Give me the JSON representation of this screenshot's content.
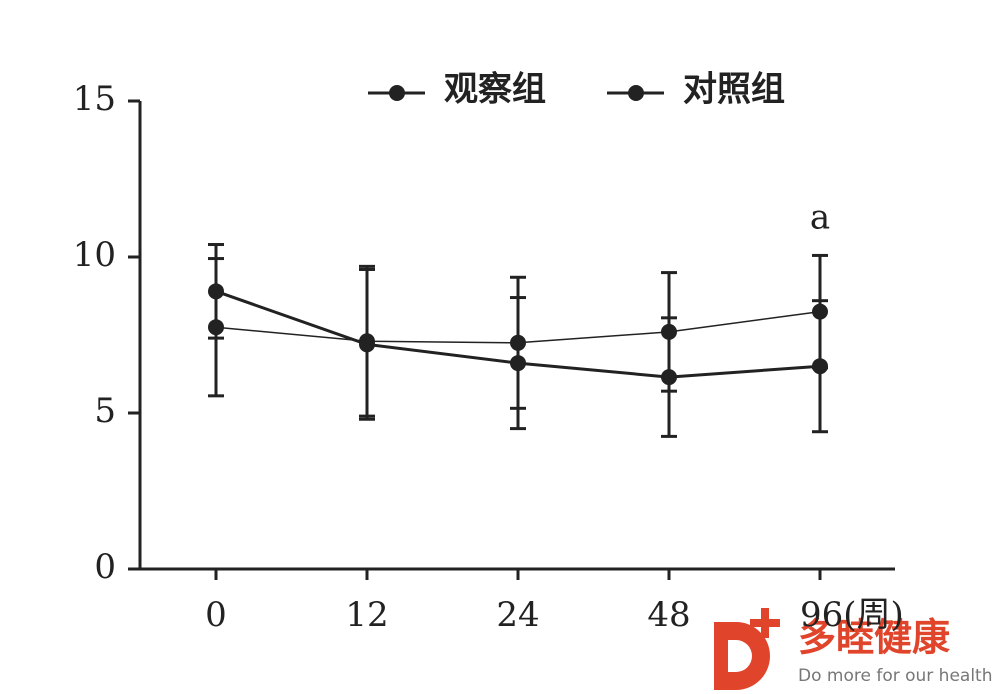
{
  "chart_data": {
    "type": "line",
    "categories": [
      "0",
      "12",
      "24",
      "48",
      "96(周)"
    ],
    "series": [
      {
        "name": "观察组",
        "color": "#222222",
        "values": [
          8.9,
          7.2,
          6.6,
          6.15,
          6.5
        ],
        "errors": [
          1.5,
          2.4,
          2.1,
          1.9,
          2.1
        ]
      },
      {
        "name": "对照组",
        "color": "#222222",
        "values": [
          7.75,
          7.3,
          7.25,
          7.6,
          8.25
        ],
        "errors": [
          2.2,
          2.4,
          2.1,
          1.9,
          1.8
        ]
      }
    ],
    "ylim": [
      0,
      15
    ],
    "yticks": [
      0,
      5,
      10,
      15
    ],
    "annotations": [
      {
        "text": "a",
        "category": 4,
        "y": 11.2
      }
    ],
    "legend": "top"
  },
  "watermark": {
    "brand": "多睦健康",
    "slogan": "Do more for our health"
  }
}
